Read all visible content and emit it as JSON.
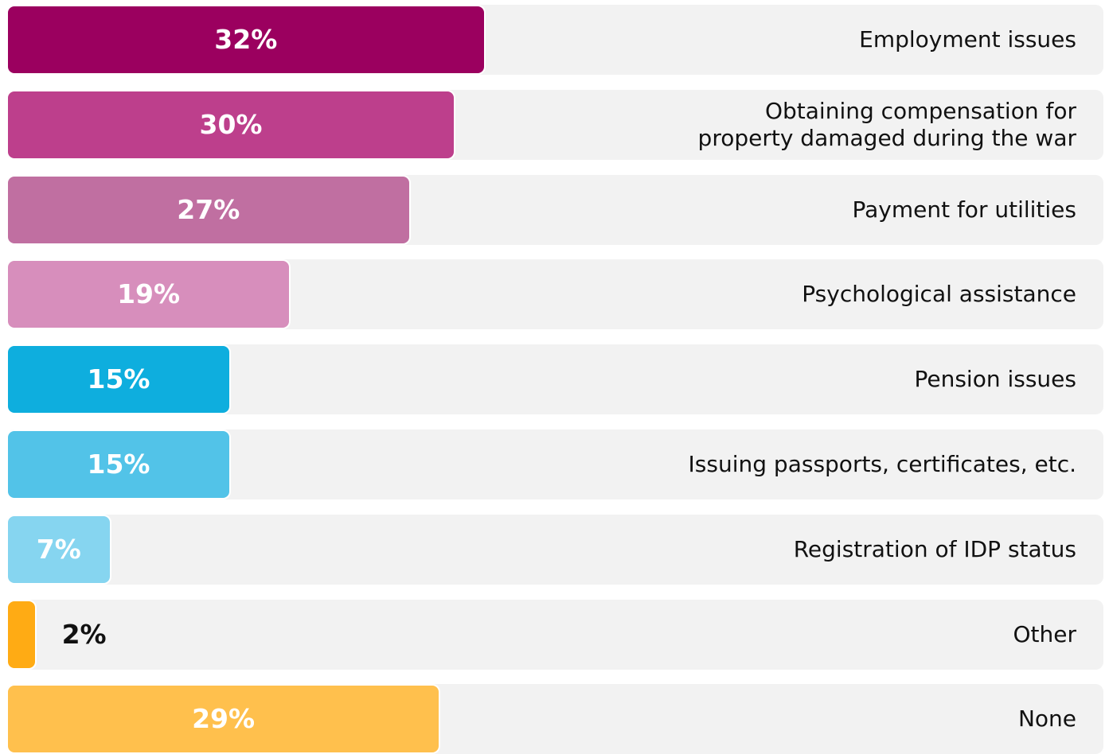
{
  "chart_data": {
    "type": "bar",
    "orientation": "horizontal",
    "categories": [
      "Employment issues",
      "Obtaining compensation for\nproperty damaged during the war",
      "Payment for utilities",
      "Psychological assistance",
      "Pension issues",
      "Issuing passports, certificates, etc.",
      "Registration of IDP status",
      "Other",
      "None"
    ],
    "values": [
      32,
      30,
      27,
      19,
      15,
      15,
      7,
      2,
      29
    ],
    "value_labels": [
      "32%",
      "30%",
      "27%",
      "19%",
      "15%",
      "15%",
      "7%",
      "2%",
      "29%"
    ],
    "colors": [
      "#9b005f",
      "#bd3f8c",
      "#c06fa1",
      "#d78ebc",
      "#0eaede",
      "#52c3e8",
      "#86d5f0",
      "#ffab14",
      "#ffc04d"
    ]
  }
}
